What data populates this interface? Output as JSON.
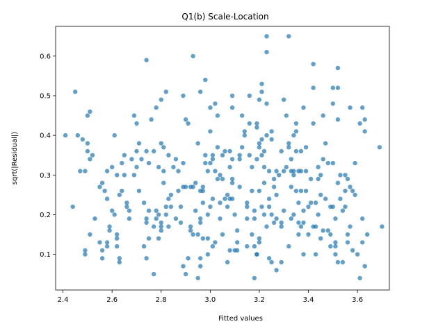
{
  "chart_data": {
    "type": "scatter",
    "title": "Q1(b) Scale-Location",
    "xlabel": "Fitted values",
    "ylabel": "sqrt(|Residual|)",
    "xlim": [
      2.37,
      3.73
    ],
    "ylim": [
      0.01,
      0.675
    ],
    "xticks": [
      2.4,
      2.6,
      2.8,
      3.0,
      3.2,
      3.4,
      3.6
    ],
    "xtick_labels": [
      "2.4",
      "2.6",
      "2.8",
      "3.0",
      "3.2",
      "3.4",
      "3.6"
    ],
    "yticks": [
      0.1,
      0.2,
      0.3,
      0.4,
      0.5,
      0.6
    ],
    "ytick_labels": [
      "0.1",
      "0.2",
      "0.3",
      "0.4",
      "0.5",
      "0.6"
    ],
    "grid": false,
    "marker_color": "#1f77b4",
    "marker_alpha": 0.7,
    "points": [
      [
        2.41,
        0.4
      ],
      [
        2.44,
        0.22
      ],
      [
        2.45,
        0.51
      ],
      [
        2.46,
        0.4
      ],
      [
        2.47,
        0.31
      ],
      [
        2.48,
        0.39
      ],
      [
        2.49,
        0.31
      ],
      [
        2.49,
        0.11
      ],
      [
        2.49,
        0.1
      ],
      [
        2.5,
        0.45
      ],
      [
        2.5,
        0.38
      ],
      [
        2.5,
        0.36
      ],
      [
        2.51,
        0.46
      ],
      [
        2.51,
        0.34
      ],
      [
        2.51,
        0.15
      ],
      [
        2.52,
        0.35
      ],
      [
        2.53,
        0.19
      ],
      [
        2.55,
        0.13
      ],
      [
        2.55,
        0.27
      ],
      [
        2.56,
        0.11
      ],
      [
        2.56,
        0.09
      ],
      [
        2.56,
        0.28
      ],
      [
        2.57,
        0.26
      ],
      [
        2.58,
        0.31
      ],
      [
        2.58,
        0.24
      ],
      [
        2.58,
        0.12
      ],
      [
        2.58,
        0.13
      ],
      [
        2.59,
        0.16
      ],
      [
        2.59,
        0.17
      ],
      [
        2.6,
        0.21
      ],
      [
        2.6,
        0.32
      ],
      [
        2.61,
        0.4
      ],
      [
        2.61,
        0.2
      ],
      [
        2.62,
        0.15
      ],
      [
        2.62,
        0.3
      ],
      [
        2.62,
        0.14
      ],
      [
        2.62,
        0.12
      ],
      [
        2.63,
        0.25
      ],
      [
        2.63,
        0.09
      ],
      [
        2.63,
        0.08
      ],
      [
        2.64,
        0.26
      ],
      [
        2.64,
        0.33
      ],
      [
        2.65,
        0.35
      ],
      [
        2.65,
        0.3
      ],
      [
        2.66,
        0.23
      ],
      [
        2.66,
        0.22
      ],
      [
        2.67,
        0.21
      ],
      [
        2.67,
        0.19
      ],
      [
        2.68,
        0.34
      ],
      [
        2.69,
        0.45
      ],
      [
        2.69,
        0.3
      ],
      [
        2.7,
        0.43
      ],
      [
        2.7,
        0.36
      ],
      [
        2.7,
        0.32
      ],
      [
        2.71,
        0.26
      ],
      [
        2.71,
        0.38
      ],
      [
        2.72,
        0.34
      ],
      [
        2.73,
        0.12
      ],
      [
        2.73,
        0.23
      ],
      [
        2.74,
        0.09
      ],
      [
        2.74,
        0.59
      ],
      [
        2.74,
        0.36
      ],
      [
        2.74,
        0.18
      ],
      [
        2.74,
        0.19
      ],
      [
        2.75,
        0.21
      ],
      [
        2.75,
        0.33
      ],
      [
        2.75,
        0.14
      ],
      [
        2.76,
        0.44
      ],
      [
        2.77,
        0.17
      ],
      [
        2.77,
        0.36
      ],
      [
        2.77,
        0.05
      ],
      [
        2.78,
        0.21
      ],
      [
        2.78,
        0.19
      ],
      [
        2.78,
        0.47
      ],
      [
        2.79,
        0.32
      ],
      [
        2.79,
        0.14
      ],
      [
        2.79,
        0.2
      ],
      [
        2.8,
        0.17
      ],
      [
        2.8,
        0.18
      ],
      [
        2.8,
        0.38
      ],
      [
        2.8,
        0.49
      ],
      [
        2.8,
        0.16
      ],
      [
        2.81,
        0.31
      ],
      [
        2.81,
        0.28
      ],
      [
        2.81,
        0.37
      ],
      [
        2.82,
        0.2
      ],
      [
        2.82,
        0.22
      ],
      [
        2.82,
        0.51
      ],
      [
        2.83,
        0.35
      ],
      [
        2.83,
        0.24
      ],
      [
        2.83,
        0.17
      ],
      [
        2.84,
        0.22
      ],
      [
        2.84,
        0.25
      ],
      [
        2.85,
        0.32
      ],
      [
        2.86,
        0.34
      ],
      [
        2.86,
        0.19
      ],
      [
        2.87,
        0.26
      ],
      [
        2.87,
        0.31
      ],
      [
        2.88,
        0.18
      ],
      [
        2.88,
        0.22
      ],
      [
        2.89,
        0.27
      ],
      [
        2.89,
        0.33
      ],
      [
        2.89,
        0.07
      ],
      [
        2.89,
        0.5
      ],
      [
        2.9,
        0.05
      ],
      [
        2.9,
        0.27
      ],
      [
        2.9,
        0.44
      ],
      [
        2.91,
        0.09
      ],
      [
        2.91,
        0.43
      ],
      [
        2.92,
        0.17
      ],
      [
        2.92,
        0.16
      ],
      [
        2.92,
        0.27
      ],
      [
        2.93,
        0.15
      ],
      [
        2.93,
        0.27
      ],
      [
        2.93,
        0.6
      ],
      [
        2.94,
        0.21
      ],
      [
        2.94,
        0.28
      ],
      [
        2.95,
        0.38
      ],
      [
        2.95,
        0.04
      ],
      [
        2.95,
        0.15
      ],
      [
        2.96,
        0.07
      ],
      [
        2.96,
        0.09
      ],
      [
        2.96,
        0.19
      ],
      [
        2.96,
        0.18
      ],
      [
        2.96,
        0.26
      ],
      [
        2.96,
        0.51
      ],
      [
        2.97,
        0.27
      ],
      [
        2.97,
        0.26
      ],
      [
        2.97,
        0.23
      ],
      [
        2.97,
        0.14
      ],
      [
        2.98,
        0.54
      ],
      [
        2.98,
        0.33
      ],
      [
        2.98,
        0.35
      ],
      [
        2.99,
        0.2
      ],
      [
        2.99,
        0.31
      ],
      [
        2.99,
        0.1
      ],
      [
        2.99,
        0.14
      ],
      [
        3.0,
        0.22
      ],
      [
        3.0,
        0.33
      ],
      [
        3.0,
        0.41
      ],
      [
        3.0,
        0.47
      ],
      [
        3.01,
        0.35
      ],
      [
        3.01,
        0.12
      ],
      [
        3.01,
        0.24
      ],
      [
        3.01,
        0.34
      ],
      [
        3.02,
        0.13
      ],
      [
        3.02,
        0.31
      ],
      [
        3.02,
        0.48
      ],
      [
        3.03,
        0.29
      ],
      [
        3.03,
        0.45
      ],
      [
        3.03,
        0.37
      ],
      [
        3.04,
        0.3
      ],
      [
        3.04,
        0.19
      ],
      [
        3.04,
        0.23
      ],
      [
        3.05,
        0.15
      ],
      [
        3.05,
        0.35
      ],
      [
        3.05,
        0.29
      ],
      [
        3.06,
        0.24
      ],
      [
        3.06,
        0.36
      ],
      [
        3.07,
        0.25
      ],
      [
        3.07,
        0.22
      ],
      [
        3.07,
        0.08
      ],
      [
        3.08,
        0.32
      ],
      [
        3.08,
        0.36
      ],
      [
        3.08,
        0.11
      ],
      [
        3.08,
        0.24
      ],
      [
        3.09,
        0.5
      ],
      [
        3.09,
        0.47
      ],
      [
        3.09,
        0.29
      ],
      [
        3.09,
        0.28
      ],
      [
        3.09,
        0.24
      ],
      [
        3.09,
        0.34
      ],
      [
        3.1,
        0.2
      ],
      [
        3.1,
        0.11
      ],
      [
        3.11,
        0.11
      ],
      [
        3.11,
        0.13
      ],
      [
        3.11,
        0.16
      ],
      [
        3.12,
        0.27
      ],
      [
        3.12,
        0.34
      ],
      [
        3.12,
        0.35
      ],
      [
        3.13,
        0.37
      ],
      [
        3.13,
        0.45
      ],
      [
        3.14,
        0.41
      ],
      [
        3.14,
        0.4
      ],
      [
        3.15,
        0.19
      ],
      [
        3.15,
        0.23
      ],
      [
        3.15,
        0.22
      ],
      [
        3.15,
        0.12
      ],
      [
        3.16,
        0.43
      ],
      [
        3.16,
        0.5
      ],
      [
        3.16,
        0.35
      ],
      [
        3.17,
        0.15
      ],
      [
        3.17,
        0.26
      ],
      [
        3.17,
        0.32
      ],
      [
        3.18,
        0.21
      ],
      [
        3.18,
        0.19
      ],
      [
        3.18,
        0.04
      ],
      [
        3.18,
        0.12
      ],
      [
        3.19,
        0.34
      ],
      [
        3.19,
        0.42
      ],
      [
        3.19,
        0.43
      ],
      [
        3.19,
        0.1
      ],
      [
        3.19,
        0.1
      ],
      [
        3.2,
        0.37
      ],
      [
        3.2,
        0.38
      ],
      [
        3.2,
        0.49
      ],
      [
        3.2,
        0.26
      ],
      [
        3.2,
        0.14
      ],
      [
        3.2,
        0.13
      ],
      [
        3.21,
        0.22
      ],
      [
        3.21,
        0.51
      ],
      [
        3.21,
        0.53
      ],
      [
        3.21,
        0.35
      ],
      [
        3.21,
        0.39
      ],
      [
        3.22,
        0.28
      ],
      [
        3.22,
        0.2
      ],
      [
        3.22,
        0.32
      ],
      [
        3.22,
        0.36
      ],
      [
        3.23,
        0.65
      ],
      [
        3.23,
        0.61
      ],
      [
        3.23,
        0.48
      ],
      [
        3.23,
        0.4
      ],
      [
        3.23,
        0.17
      ],
      [
        3.24,
        0.09
      ],
      [
        3.24,
        0.24
      ],
      [
        3.24,
        0.31
      ],
      [
        3.24,
        0.22
      ],
      [
        3.25,
        0.41
      ],
      [
        3.25,
        0.39
      ],
      [
        3.25,
        0.2
      ],
      [
        3.25,
        0.08
      ],
      [
        3.26,
        0.18
      ],
      [
        3.26,
        0.29
      ],
      [
        3.26,
        0.27
      ],
      [
        3.27,
        0.31
      ],
      [
        3.27,
        0.06
      ],
      [
        3.27,
        0.19
      ],
      [
        3.27,
        0.25
      ],
      [
        3.28,
        0.3
      ],
      [
        3.29,
        0.08
      ],
      [
        3.29,
        0.17
      ],
      [
        3.29,
        0.36
      ],
      [
        3.29,
        0.18
      ],
      [
        3.3,
        0.49
      ],
      [
        3.3,
        0.31
      ],
      [
        3.3,
        0.21
      ],
      [
        3.31,
        0.32
      ],
      [
        3.31,
        0.45
      ],
      [
        3.32,
        0.65
      ],
      [
        3.32,
        0.37
      ],
      [
        3.32,
        0.12
      ],
      [
        3.32,
        0.38
      ],
      [
        3.33,
        0.27
      ],
      [
        3.33,
        0.31
      ],
      [
        3.33,
        0.19
      ],
      [
        3.33,
        0.34
      ],
      [
        3.34,
        0.4
      ],
      [
        3.34,
        0.2
      ],
      [
        3.34,
        0.3
      ],
      [
        3.34,
        0.31
      ],
      [
        3.35,
        0.26
      ],
      [
        3.35,
        0.36
      ],
      [
        3.35,
        0.43
      ],
      [
        3.35,
        0.41
      ],
      [
        3.36,
        0.31
      ],
      [
        3.36,
        0.23
      ],
      [
        3.36,
        0.18
      ],
      [
        3.36,
        0.15
      ],
      [
        3.37,
        0.26
      ],
      [
        3.37,
        0.36
      ],
      [
        3.37,
        0.31
      ],
      [
        3.37,
        0.17
      ],
      [
        3.38,
        0.47
      ],
      [
        3.38,
        0.18
      ],
      [
        3.38,
        0.21
      ],
      [
        3.38,
        0.1
      ],
      [
        3.39,
        0.37
      ],
      [
        3.39,
        0.31
      ],
      [
        3.39,
        0.26
      ],
      [
        3.4,
        0.15
      ],
      [
        3.4,
        0.22
      ],
      [
        3.41,
        0.23
      ],
      [
        3.41,
        0.29
      ],
      [
        3.42,
        0.43
      ],
      [
        3.42,
        0.52
      ],
      [
        3.42,
        0.58
      ],
      [
        3.42,
        0.17
      ],
      [
        3.43,
        0.1
      ],
      [
        3.43,
        0.17
      ],
      [
        3.43,
        0.23
      ],
      [
        3.44,
        0.32
      ],
      [
        3.44,
        0.29
      ],
      [
        3.44,
        0.2
      ],
      [
        3.45,
        0.3
      ],
      [
        3.45,
        0.14
      ],
      [
        3.45,
        0.25
      ],
      [
        3.46,
        0.45
      ],
      [
        3.46,
        0.34
      ],
      [
        3.46,
        0.16
      ],
      [
        3.47,
        0.38
      ],
      [
        3.47,
        0.24
      ],
      [
        3.48,
        0.16
      ],
      [
        3.48,
        0.33
      ],
      [
        3.49,
        0.22
      ],
      [
        3.49,
        0.15
      ],
      [
        3.49,
        0.12
      ],
      [
        3.5,
        0.52
      ],
      [
        3.5,
        0.48
      ],
      [
        3.5,
        0.33
      ],
      [
        3.5,
        0.22
      ],
      [
        3.51,
        0.12
      ],
      [
        3.51,
        0.1
      ],
      [
        3.51,
        0.13
      ],
      [
        3.51,
        0.19
      ],
      [
        3.52,
        0.57
      ],
      [
        3.52,
        0.52
      ],
      [
        3.52,
        0.44
      ],
      [
        3.52,
        0.08
      ],
      [
        3.52,
        0.28
      ],
      [
        3.53,
        0.24
      ],
      [
        3.53,
        0.3
      ],
      [
        3.54,
        0.21
      ],
      [
        3.54,
        0.08
      ],
      [
        3.55,
        0.22
      ],
      [
        3.55,
        0.26
      ],
      [
        3.55,
        0.3
      ],
      [
        3.56,
        0.15
      ],
      [
        3.56,
        0.29
      ],
      [
        3.56,
        0.13
      ],
      [
        3.57,
        0.47
      ],
      [
        3.57,
        0.17
      ],
      [
        3.57,
        0.27
      ],
      [
        3.58,
        0.26
      ],
      [
        3.58,
        0.11
      ],
      [
        3.59,
        0.33
      ],
      [
        3.59,
        0.25
      ],
      [
        3.6,
        0.1
      ],
      [
        3.61,
        0.04
      ],
      [
        3.61,
        0.43
      ],
      [
        3.62,
        0.47
      ],
      [
        3.62,
        0.19
      ],
      [
        3.62,
        0.13
      ],
      [
        3.63,
        0.44
      ],
      [
        3.63,
        0.41
      ],
      [
        3.63,
        0.07
      ],
      [
        3.64,
        0.15
      ],
      [
        3.69,
        0.37
      ],
      [
        3.7,
        0.17
      ]
    ]
  }
}
